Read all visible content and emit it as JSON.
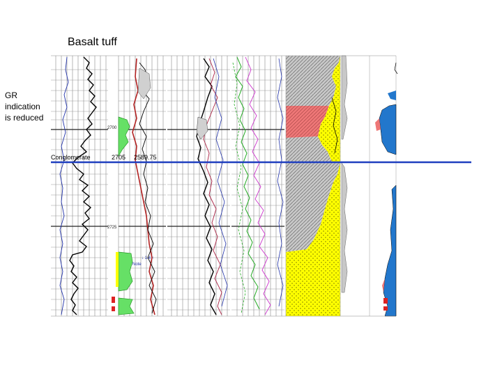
{
  "title": "Basalt tuff",
  "annotation": [
    "GR",
    "indication",
    "is reduced"
  ],
  "depth_marks": [
    "2700",
    "2725"
  ],
  "marker": {
    "label": "Conglomerate",
    "depth": "2705",
    "value": "2589.75",
    "color": "#1f3fbf"
  },
  "colors": {
    "grid": "#7a7a7a",
    "gr_curve": "#000000",
    "resistivity_red": "#b22222",
    "green_fill": "#66e066",
    "magenta_curve": "#cc33cc",
    "lithology_gray": "#c8c8c8",
    "lithology_yellow": "#ffff00",
    "lithology_pink": "#ee7777",
    "blue_fill": "#2277cc"
  }
}
